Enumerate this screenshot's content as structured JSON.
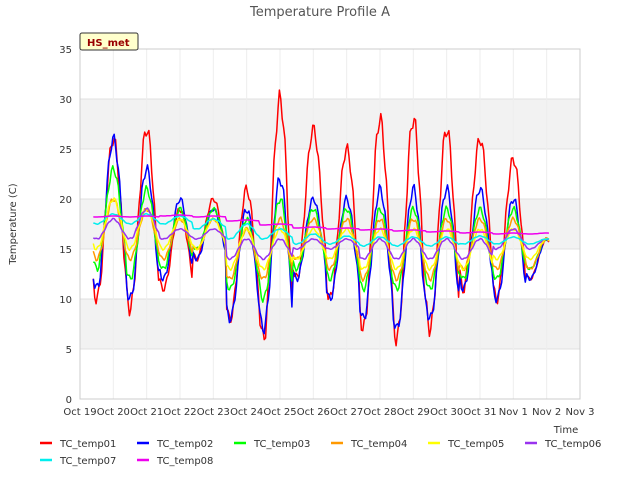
{
  "chart_data": {
    "type": "line",
    "title": "Temperature Profile A",
    "xlabel": "Time",
    "ylabel": "Temperature (C)",
    "badge": "HS_met",
    "ylim": [
      0,
      35
    ],
    "yticks": [
      0,
      5,
      10,
      15,
      20,
      25,
      30,
      35
    ],
    "x_range_days": [
      "Oct 19",
      "Nov 3"
    ],
    "xtick_labels": [
      "Oct 19",
      "Oct 20",
      "Oct 21",
      "Oct 22",
      "Oct 23",
      "Oct 24",
      "Oct 25",
      "Oct 26",
      "Oct 27",
      "Oct 28",
      "Oct 29",
      "Oct 30",
      "Oct 31",
      "Nov 1",
      "Nov 2",
      "Nov 3"
    ],
    "grid": true,
    "banded_background": true,
    "legend_position": "bottom",
    "x_days": [
      "Oct 19",
      "Oct 20",
      "Oct 21",
      "Oct 22",
      "Oct 23",
      "Oct 24",
      "Oct 25",
      "Oct 26",
      "Oct 27",
      "Oct 28",
      "Oct 29",
      "Oct 30",
      "Oct 31",
      "Nov 1",
      "Nov 2"
    ],
    "series": [
      {
        "name": "TC_temp01",
        "color": "#ff0000",
        "daily_min": [
          10,
          9,
          11,
          14,
          8,
          6,
          12,
          10,
          7,
          6,
          7,
          11,
          10,
          12,
          12
        ],
        "daily_max": [
          26,
          27,
          19,
          20,
          21,
          30,
          27,
          25,
          28,
          28,
          27,
          26,
          24,
          16,
          15
        ]
      },
      {
        "name": "TC_temp02",
        "color": "#0000ff",
        "daily_min": [
          11,
          10,
          12,
          14,
          8,
          7,
          12,
          10,
          8,
          7,
          8,
          11,
          10,
          12,
          12
        ],
        "daily_max": [
          26,
          23,
          20,
          19,
          19,
          22,
          20,
          20,
          21,
          21,
          21,
          21,
          20,
          16,
          15
        ]
      },
      {
        "name": "TC_temp03",
        "color": "#00ff00",
        "daily_min": [
          13,
          12,
          13,
          15,
          11,
          10,
          13,
          12,
          11,
          11,
          11,
          12,
          12,
          13,
          13
        ],
        "daily_max": [
          23,
          21,
          19,
          19,
          18,
          20,
          19,
          19,
          19,
          19,
          19,
          19,
          19,
          16,
          15
        ]
      },
      {
        "name": "TC_temp04",
        "color": "#ff9900",
        "daily_min": [
          14,
          14,
          14,
          15,
          12,
          12,
          14,
          13,
          12,
          12,
          12,
          13,
          13,
          13,
          13
        ],
        "daily_max": [
          20,
          19,
          18,
          18,
          17,
          18,
          18,
          18,
          18,
          18,
          18,
          18,
          18,
          16,
          15
        ]
      },
      {
        "name": "TC_temp05",
        "color": "#ffff00",
        "daily_min": [
          15,
          15,
          15,
          15,
          13,
          13,
          14,
          14,
          13,
          13,
          13,
          13,
          14,
          14,
          13
        ],
        "daily_max": [
          20,
          19,
          18,
          18,
          17,
          17,
          17,
          17,
          17,
          17,
          17,
          17,
          17,
          16,
          15
        ]
      },
      {
        "name": "TC_temp06",
        "color": "#9933ee",
        "daily_min": [
          16,
          16,
          16,
          16,
          14,
          14,
          15,
          15,
          14,
          14,
          14,
          14,
          15,
          15,
          14
        ],
        "daily_max": [
          18,
          19,
          17,
          17,
          16,
          16,
          16,
          16,
          16,
          16,
          16,
          16,
          17,
          16,
          15
        ]
      },
      {
        "name": "TC_temp07",
        "color": "#00eeee",
        "daily_min": [
          17.5,
          17.5,
          17.5,
          17,
          16,
          16,
          15.5,
          15.5,
          15.3,
          15.3,
          15.3,
          15.5,
          15.5,
          15.5,
          15.3
        ],
        "daily_max": [
          18.5,
          18.5,
          18.3,
          18,
          17.5,
          17,
          16.5,
          16.3,
          16.2,
          16.2,
          16.2,
          16.3,
          16.2,
          16,
          15.8
        ]
      },
      {
        "name": "TC_temp08",
        "color": "#ee00ee",
        "daily_min": [
          18.2,
          18.2,
          18.3,
          18.2,
          17.8,
          17.4,
          17.1,
          17,
          16.9,
          16.8,
          16.7,
          16.6,
          16.5,
          16.5,
          16.4
        ],
        "daily_max": [
          18.3,
          18.3,
          18.4,
          18.3,
          17.9,
          17.5,
          17.2,
          17.1,
          17,
          16.9,
          16.8,
          16.7,
          16.6,
          16.6,
          16.5
        ]
      }
    ]
  }
}
